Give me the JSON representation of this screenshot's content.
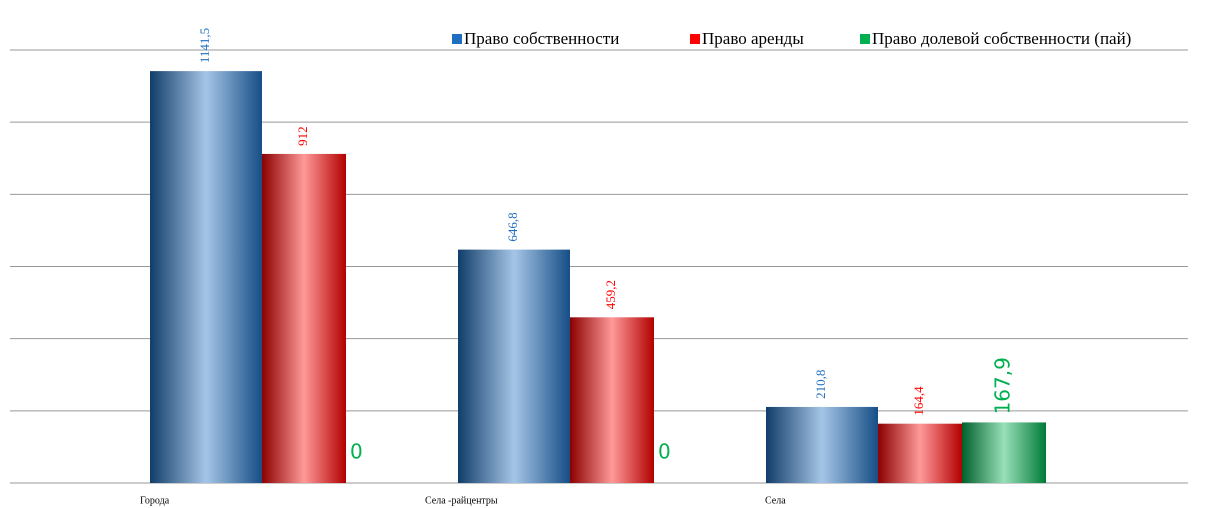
{
  "chart_data": {
    "type": "bar",
    "categories": [
      "Города",
      "Села -райцентры",
      "Села"
    ],
    "series": [
      {
        "name": "Право собственности",
        "color": "#1f6fc0",
        "values": [
          1141.5,
          646.8,
          210.8
        ],
        "value_labels": [
          "1141,5",
          "646,8",
          "210,8"
        ]
      },
      {
        "name": "Право аренды",
        "color": "#ff0000",
        "values": [
          912,
          459.2,
          164.4
        ],
        "value_labels": [
          "912",
          "459,2",
          "164,4"
        ]
      },
      {
        "name": "Право долевой собственности (пай)",
        "color": "#00b050",
        "values": [
          0,
          0,
          167.9
        ],
        "value_labels": [
          "0",
          "0",
          "167,9"
        ]
      }
    ],
    "ylim": [
      0,
      1200
    ],
    "yticks": [
      0,
      200,
      400,
      600,
      800,
      1000,
      1200
    ],
    "grid": true,
    "legend": "top-right"
  }
}
